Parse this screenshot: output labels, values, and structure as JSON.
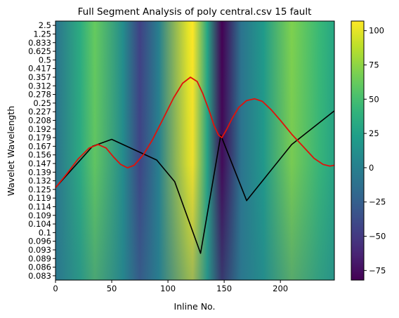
{
  "chart_data": {
    "type": "heatmap",
    "title": "Full Segment Analysis of poly central.csv 15 fault",
    "xlabel": "Inline No.",
    "ylabel": "Wavelet Wavelength",
    "xlim": [
      0,
      248
    ],
    "x_ticks": [
      0,
      50,
      100,
      150,
      200
    ],
    "y_tick_labels": [
      "2.5",
      "1.25",
      "0.833",
      "0.625",
      "0.5",
      "0.417",
      "0.357",
      "0.312",
      "0.278",
      "0.25",
      "0.227",
      "0.208",
      "0.192",
      "0.179",
      "0.167",
      "0.156",
      "0.147",
      "0.139",
      "0.132",
      "0.125",
      "0.119",
      "0.114",
      "0.109",
      "0.104",
      "0.1",
      "0.096",
      "0.093",
      "0.089",
      "0.086",
      "0.083"
    ],
    "colorbar": {
      "colormap": "viridis",
      "range": [
        -82,
        107
      ],
      "ticks": [
        -75,
        -50,
        -25,
        0,
        25,
        50,
        75,
        100
      ]
    },
    "heatmap_ridges": [
      {
        "x": 0,
        "value": -10
      },
      {
        "x": 22,
        "value": 35
      },
      {
        "x": 35,
        "value": 62
      },
      {
        "x": 60,
        "value": 10
      },
      {
        "x": 75,
        "value": -45
      },
      {
        "x": 92,
        "value": 0
      },
      {
        "x": 118,
        "value": 100
      },
      {
        "x": 122,
        "value": 107
      },
      {
        "x": 135,
        "value": 30
      },
      {
        "x": 148,
        "value": -82
      },
      {
        "x": 165,
        "value": -10
      },
      {
        "x": 185,
        "value": 20
      },
      {
        "x": 210,
        "value": 70
      },
      {
        "x": 235,
        "value": 45
      },
      {
        "x": 248,
        "value": 30
      }
    ],
    "series": [
      {
        "color": "#000000",
        "points": [
          [
            0,
            18.8
          ],
          [
            33,
            14.0
          ],
          [
            50,
            13.2
          ],
          [
            90,
            15.6
          ],
          [
            106,
            18.1
          ],
          [
            129,
            26.4
          ],
          [
            147,
            12.7
          ],
          [
            170,
            20.3
          ],
          [
            210,
            13.8
          ],
          [
            248,
            9.9
          ]
        ]
      },
      {
        "color": "#e0120a",
        "points": [
          [
            0,
            18.8
          ],
          [
            10,
            17.2
          ],
          [
            20,
            15.5
          ],
          [
            30,
            14.2
          ],
          [
            38,
            13.8
          ],
          [
            45,
            14.2
          ],
          [
            52,
            15.3
          ],
          [
            58,
            16.1
          ],
          [
            64,
            16.5
          ],
          [
            70,
            16.2
          ],
          [
            78,
            15.0
          ],
          [
            86,
            13.3
          ],
          [
            95,
            11.0
          ],
          [
            105,
            8.4
          ],
          [
            113,
            6.7
          ],
          [
            120,
            6.0
          ],
          [
            126,
            6.5
          ],
          [
            131,
            7.9
          ],
          [
            137,
            10.0
          ],
          [
            141,
            11.6
          ],
          [
            145,
            12.7
          ],
          [
            148,
            13.0
          ],
          [
            152,
            12.1
          ],
          [
            157,
            10.8
          ],
          [
            163,
            9.5
          ],
          [
            170,
            8.7
          ],
          [
            177,
            8.5
          ],
          [
            184,
            8.8
          ],
          [
            192,
            9.8
          ],
          [
            200,
            11.0
          ],
          [
            210,
            12.6
          ],
          [
            220,
            14.0
          ],
          [
            230,
            15.4
          ],
          [
            238,
            16.1
          ],
          [
            244,
            16.3
          ],
          [
            248,
            16.2
          ]
        ]
      }
    ]
  }
}
